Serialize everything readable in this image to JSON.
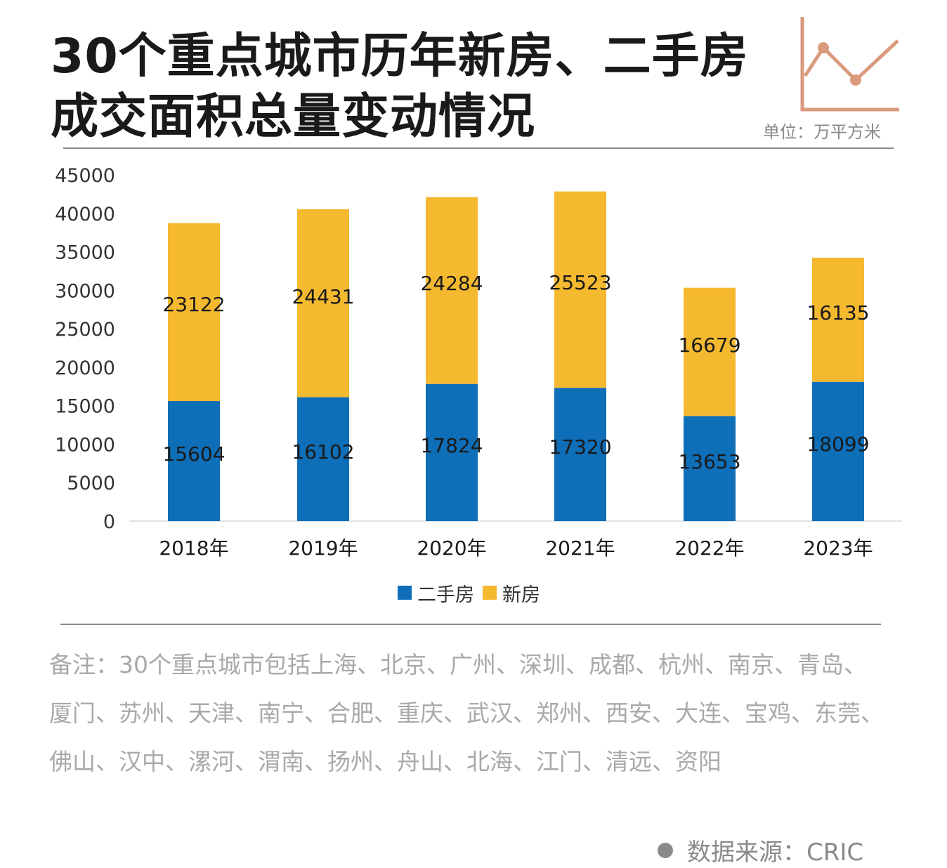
{
  "header": {
    "title_line1": "30个重点城市历年新房、二手房",
    "title_line2": "成交面积总量变动情况",
    "unit": "单位：万平方米"
  },
  "colors": {
    "second_hand": "#0E6EB8",
    "new_house": "#F4B92F",
    "deco": "#D99A7E"
  },
  "chart_data": {
    "type": "bar",
    "stacked": true,
    "title": "30个重点城市历年新房、二手房成交面积总量变动情况",
    "ylabel": "万平方米",
    "ylim": [
      0,
      45000
    ],
    "yticks": [
      "45000",
      "40000",
      "35000",
      "30000",
      "25000",
      "20000",
      "15000",
      "10000",
      "5000",
      "0"
    ],
    "categories": [
      "2018年",
      "2019年",
      "2020年",
      "2021年",
      "2022年",
      "2023年"
    ],
    "series": [
      {
        "name": "二手房",
        "values": [
          15604,
          16102,
          17824,
          17320,
          13653,
          18099
        ]
      },
      {
        "name": "新房",
        "values": [
          23122,
          24431,
          24284,
          25523,
          16679,
          16135
        ]
      }
    ],
    "legend": "bottom-center"
  },
  "legend": {
    "second_hand_label": "二手房",
    "new_house_label": "新房"
  },
  "note": {
    "text": "备注：30个重点城市包括上海、北京、广州、深圳、成都、杭州、南京、青岛、厦门、苏州、天津、南宁、合肥、重庆、武汉、郑州、西安、大连、宝鸡、东莞、佛山、汉中、漯河、渭南、扬州、舟山、北海、江门、清远、资阳"
  },
  "source": {
    "text": "数据来源：CRIC"
  }
}
